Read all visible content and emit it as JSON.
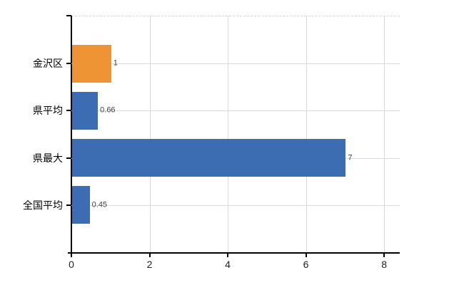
{
  "chart_data": {
    "type": "bar",
    "orientation": "horizontal",
    "title": "",
    "xlabel": "",
    "ylabel": "",
    "categories": [
      "金沢区",
      "県平均",
      "県最大",
      "全国平均"
    ],
    "values": [
      1,
      0.66,
      7,
      0.45
    ],
    "value_labels": [
      "1",
      "0.66",
      "7",
      "0.45"
    ],
    "series": [
      {
        "name": "highlighted",
        "category": "金沢区",
        "value": 1,
        "color": "#EF9435"
      },
      {
        "name": "default",
        "category": "県平均",
        "value": 0.66,
        "color": "#3C6DB2"
      },
      {
        "name": "default",
        "category": "県最大",
        "value": 7,
        "color": "#3C6DB2"
      },
      {
        "name": "default",
        "category": "全国平均",
        "value": 0.45,
        "color": "#3C6DB2"
      }
    ],
    "bar_colors": [
      "#EF9435",
      "#3C6DB2",
      "#3C6DB2",
      "#3C6DB2"
    ],
    "xlim": [
      0,
      8.4
    ],
    "x_ticks": [
      0,
      2,
      4,
      6,
      8
    ],
    "x_tick_labels": [
      "0",
      "2",
      "4",
      "6",
      "8"
    ],
    "grid": "on",
    "legend": "none"
  },
  "colors": {
    "bar_orange": "#EF9435",
    "bar_blue": "#3C6DB2",
    "gridline": "#D9D9D9",
    "axis": "#000000",
    "value_label_text": "#3F3F3F",
    "background": "#FFFFFF"
  }
}
